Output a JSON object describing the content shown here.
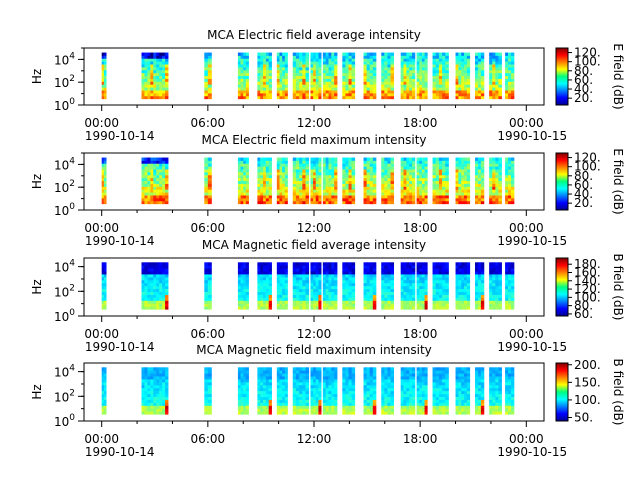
{
  "chart_data": [
    {
      "type": "heatmap",
      "title": "MCA  Electric field average intensity",
      "ylabel": "Hz",
      "yscale": "log",
      "ylim": [
        1,
        100000
      ],
      "y_ticks": [
        {
          "exp": "0"
        },
        {
          "exp": "2"
        },
        {
          "exp": "4"
        }
      ],
      "x_ticks": [
        "00:00",
        "06:00",
        "12:00",
        "18:00",
        "00:00"
      ],
      "x_date_start": "1990-10-14",
      "x_date_end": "1990-10-15",
      "xlim_hours": [
        -1,
        25
      ],
      "colorbar": {
        "label": "E field (dB)",
        "range": [
          5,
          130
        ],
        "ticks": [
          "20.",
          "40.",
          "60.",
          "80.",
          "100.",
          "120."
        ],
        "tick_values": [
          20,
          40,
          60,
          80,
          100,
          120
        ]
      },
      "data_blocks_hours": [
        [
          0.0,
          0.25
        ],
        [
          2.25,
          3.75
        ],
        [
          5.8,
          6.2
        ],
        [
          7.7,
          8.3
        ],
        [
          8.8,
          9.6
        ],
        [
          9.9,
          10.5
        ],
        [
          10.8,
          11.7
        ],
        [
          11.8,
          12.4
        ],
        [
          12.5,
          13.3
        ],
        [
          13.6,
          14.3
        ],
        [
          14.8,
          15.5
        ],
        [
          15.8,
          16.5
        ],
        [
          16.9,
          17.7
        ],
        [
          17.8,
          18.4
        ],
        [
          18.7,
          19.6
        ],
        [
          20.0,
          20.8
        ],
        [
          21.1,
          21.6
        ],
        [
          21.9,
          22.6
        ],
        [
          22.8,
          23.3
        ]
      ]
    },
    {
      "type": "heatmap",
      "title": "MCA  Electric field maximum intensity",
      "ylabel": "Hz",
      "yscale": "log",
      "ylim": [
        1,
        100000
      ],
      "y_ticks": [
        {
          "exp": "0"
        },
        {
          "exp": "2"
        },
        {
          "exp": "4"
        }
      ],
      "x_ticks": [
        "00:00",
        "06:00",
        "12:00",
        "18:00",
        "00:00"
      ],
      "x_date_start": "1990-10-14",
      "x_date_end": "1990-10-15",
      "xlim_hours": [
        -1,
        25
      ],
      "colorbar": {
        "label": "E field (dB)",
        "range": [
          5,
          130
        ],
        "ticks": [
          "20.",
          "40.",
          "60.",
          "80.",
          "100.",
          "120."
        ],
        "tick_values": [
          20,
          40,
          60,
          80,
          100,
          120
        ]
      },
      "data_blocks_hours": [
        [
          0.0,
          0.25
        ],
        [
          2.25,
          3.75
        ],
        [
          5.8,
          6.2
        ],
        [
          7.7,
          8.3
        ],
        [
          8.8,
          9.6
        ],
        [
          9.9,
          10.5
        ],
        [
          10.8,
          11.7
        ],
        [
          11.8,
          12.4
        ],
        [
          12.5,
          13.3
        ],
        [
          13.6,
          14.3
        ],
        [
          14.8,
          15.5
        ],
        [
          15.8,
          16.5
        ],
        [
          16.9,
          17.7
        ],
        [
          17.8,
          18.4
        ],
        [
          18.7,
          19.6
        ],
        [
          20.0,
          20.8
        ],
        [
          21.1,
          21.6
        ],
        [
          21.9,
          22.6
        ],
        [
          22.8,
          23.3
        ]
      ]
    },
    {
      "type": "heatmap",
      "title": "MCA  Magnetic field average intensity",
      "ylabel": "Hz",
      "yscale": "log",
      "ylim": [
        1,
        50000
      ],
      "y_ticks": [
        {
          "exp": "0"
        },
        {
          "exp": "2"
        },
        {
          "exp": "4"
        }
      ],
      "x_ticks": [
        "00:00",
        "06:00",
        "12:00",
        "18:00",
        "00:00"
      ],
      "x_date_start": "1990-10-14",
      "x_date_end": "1990-10-15",
      "xlim_hours": [
        -1,
        25
      ],
      "colorbar": {
        "label": "B field (dB)",
        "range": [
          55,
          195
        ],
        "ticks": [
          "60.",
          "80.",
          "100.",
          "120.",
          "140.",
          "160.",
          "180."
        ],
        "tick_values": [
          60,
          80,
          100,
          120,
          140,
          160,
          180
        ]
      },
      "data_blocks_hours": [
        [
          0.0,
          0.25
        ],
        [
          2.25,
          3.75
        ],
        [
          5.8,
          6.2
        ],
        [
          7.7,
          8.3
        ],
        [
          8.8,
          9.6
        ],
        [
          9.9,
          10.5
        ],
        [
          10.8,
          11.7
        ],
        [
          11.8,
          12.4
        ],
        [
          12.5,
          13.3
        ],
        [
          13.6,
          14.3
        ],
        [
          14.8,
          15.5
        ],
        [
          15.8,
          16.5
        ],
        [
          16.9,
          17.7
        ],
        [
          17.8,
          18.4
        ],
        [
          18.7,
          19.6
        ],
        [
          20.0,
          20.8
        ],
        [
          21.1,
          21.6
        ],
        [
          21.9,
          22.6
        ],
        [
          22.8,
          23.3
        ]
      ]
    },
    {
      "type": "heatmap",
      "title": "MCA  Magnetic field maximum intensity",
      "ylabel": "Hz",
      "yscale": "log",
      "ylim": [
        1,
        50000
      ],
      "y_ticks": [
        {
          "exp": "0"
        },
        {
          "exp": "2"
        },
        {
          "exp": "4"
        }
      ],
      "x_ticks": [
        "00:00",
        "06:00",
        "12:00",
        "18:00",
        "00:00"
      ],
      "x_date_start": "1990-10-14",
      "x_date_end": "1990-10-15",
      "xlim_hours": [
        -1,
        25
      ],
      "colorbar": {
        "label": "B field (dB)",
        "range": [
          40,
          205
        ],
        "ticks": [
          "50.",
          "100.",
          "150.",
          "200."
        ],
        "tick_values": [
          50,
          100,
          150,
          200
        ]
      },
      "data_blocks_hours": [
        [
          0.0,
          0.25
        ],
        [
          2.25,
          3.75
        ],
        [
          5.8,
          6.2
        ],
        [
          7.7,
          8.3
        ],
        [
          8.8,
          9.6
        ],
        [
          9.9,
          10.5
        ],
        [
          10.8,
          11.7
        ],
        [
          11.8,
          12.4
        ],
        [
          12.5,
          13.3
        ],
        [
          13.6,
          14.3
        ],
        [
          14.8,
          15.5
        ],
        [
          15.8,
          16.5
        ],
        [
          16.9,
          17.7
        ],
        [
          17.8,
          18.4
        ],
        [
          18.7,
          19.6
        ],
        [
          20.0,
          20.8
        ],
        [
          21.1,
          21.6
        ],
        [
          21.9,
          22.6
        ],
        [
          22.8,
          23.3
        ]
      ]
    }
  ]
}
